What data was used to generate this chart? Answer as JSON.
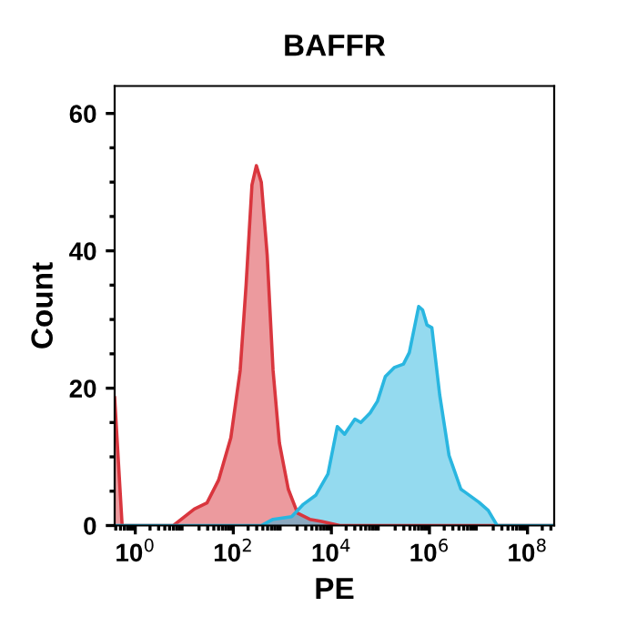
{
  "chart_data": {
    "type": "area",
    "title": "BAFFR",
    "xlabel": "PE",
    "ylabel": "Count",
    "log": "x",
    "xlim": [
      0.38,
      350000000
    ],
    "ylim": [
      0,
      64
    ],
    "xticks": [
      {
        "value": 1,
        "label": "10$^{0}$"
      },
      {
        "value": 100,
        "label": "10$^{2}$"
      },
      {
        "value": 10000,
        "label": "10$^{4}$"
      },
      {
        "value": 1000000,
        "label": "10$^{6}$"
      },
      {
        "value": 100000000,
        "label": "10$^{8}$"
      }
    ],
    "yticks": [
      0,
      20,
      40,
      60
    ],
    "grid": false,
    "legend": false,
    "series": [
      {
        "color": "#d9363e",
        "x": [
          0.38,
          0.54,
          6,
          16,
          29,
          50,
          89,
          138,
          182,
          240,
          295,
          372,
          490,
          646,
          871,
          1320,
          2040,
          3630,
          6310,
          14800,
          350000000
        ],
        "values": [
          18.6,
          0,
          0,
          2.4,
          3.3,
          6.6,
          12.8,
          22.6,
          35,
          49.6,
          52.4,
          50,
          39.4,
          22.6,
          12,
          5.3,
          1.8,
          0.9,
          0.6,
          0,
          0
        ]
      },
      {
        "color": "#29b6e0",
        "x": [
          0.38,
          372,
          646,
          1550,
          2690,
          4790,
          8510,
          13200,
          18600,
          30200,
          39800,
          61700,
          87100,
          126000,
          191000,
          295000,
          389000,
          603000,
          724000,
          891000,
          1120000,
          1620000,
          2510000,
          4370000,
          10200000,
          15800000,
          24000000,
          350000000
        ],
        "values": [
          0,
          0,
          0.9,
          1.3,
          3.1,
          4.4,
          7.5,
          14.4,
          13.3,
          15.5,
          15,
          16.4,
          18.1,
          21.7,
          23,
          23.5,
          25.2,
          31.9,
          31.4,
          29.2,
          28.8,
          19,
          10.2,
          5.3,
          3.4,
          2.2,
          0,
          0
        ]
      }
    ]
  }
}
